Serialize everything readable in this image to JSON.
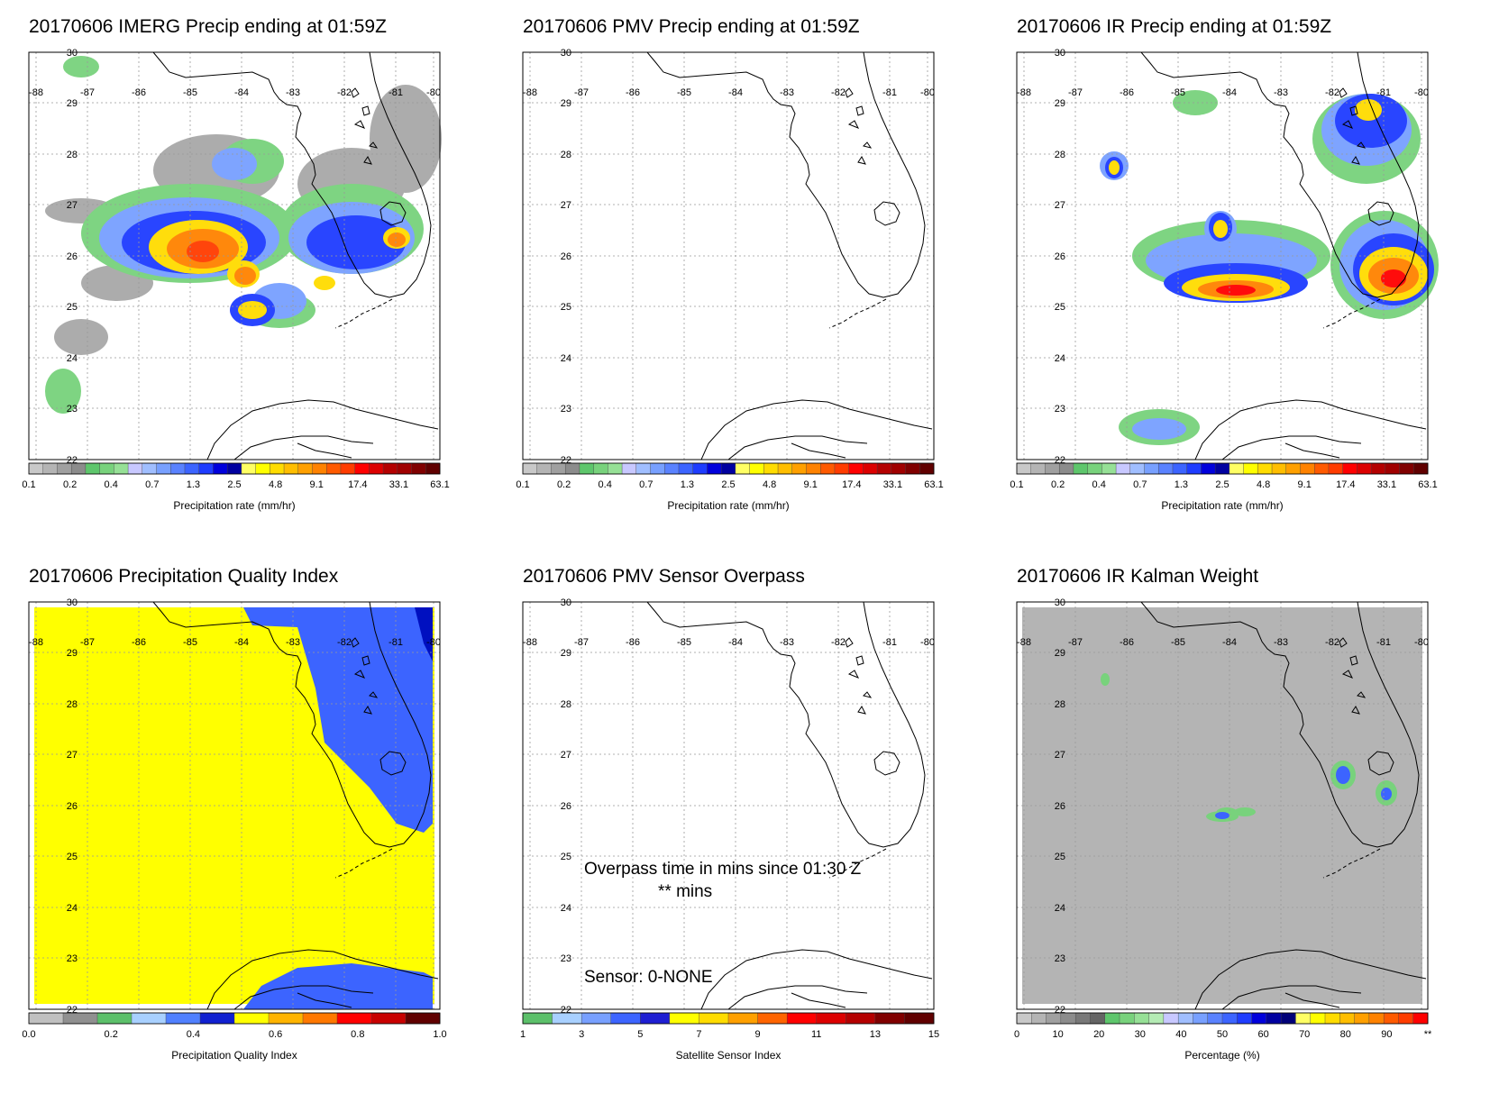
{
  "map_labels": {
    "lon": [
      "-88",
      "-87",
      "-86",
      "-85",
      "-84",
      "-83",
      "-82",
      "-81",
      "-80"
    ],
    "lat": [
      "30",
      "29",
      "28",
      "27",
      "26",
      "25",
      "24",
      "23",
      "22"
    ]
  },
  "colorbars": {
    "precip": {
      "colors": [
        "#c8c8c8",
        "#b4b4b4",
        "#a0a0a0",
        "#8c8c8c",
        "#5ec66c",
        "#78d27c",
        "#96e096",
        "#c8c8ff",
        "#a0beff",
        "#78a0ff",
        "#5a82ff",
        "#3c64ff",
        "#1e3cff",
        "#0000dc",
        "#0000a0",
        "#ffff64",
        "#ffff00",
        "#ffdc00",
        "#ffbe00",
        "#ffa000",
        "#ff8200",
        "#ff5a00",
        "#ff3c00",
        "#ff0000",
        "#dc0000",
        "#b40000",
        "#a00000",
        "#800000",
        "#600000"
      ],
      "ticks": [
        "0.1",
        "0.2",
        "0.4",
        "0.7",
        "1.3",
        "2.5",
        "4.8",
        "9.1",
        "17.4",
        "33.1",
        "63.1"
      ],
      "label": "Precipitation rate (mm/hr)"
    },
    "pqi": {
      "colors": [
        "#c0c0c0",
        "#909090",
        "#5cc06a",
        "#a8d0ff",
        "#5080ff",
        "#1020d0",
        "#ffff00",
        "#ffb400",
        "#ff7800",
        "#ff0000",
        "#c80000",
        "#600000"
      ],
      "ticks": [
        "0.0",
        "0.2",
        "0.4",
        "0.6",
        "0.8",
        "1.0"
      ],
      "label": "Precipitation Quality Index"
    },
    "sensor": {
      "colors": [
        "#5cc06a",
        "#a8d0ff",
        "#78a0ff",
        "#3c64ff",
        "#1e1ed2",
        "#ffff00",
        "#ffdc00",
        "#ffa000",
        "#ff6400",
        "#ff0000",
        "#dc0000",
        "#b40000",
        "#800000",
        "#600000"
      ],
      "ticks": [
        "1",
        "3",
        "5",
        "7",
        "9",
        "11",
        "13",
        "15"
      ],
      "label": "Satellite Sensor Index"
    },
    "percent": {
      "colors": [
        "#c8c8c8",
        "#b4b4b4",
        "#a0a0a0",
        "#8c8c8c",
        "#787878",
        "#646464",
        "#5ec66c",
        "#78d27c",
        "#96e096",
        "#b4ebb4",
        "#c8c8ff",
        "#a0beff",
        "#78a0ff",
        "#5a82ff",
        "#3c64ff",
        "#1e3cff",
        "#0000dc",
        "#0000a0",
        "#000078",
        "#ffff64",
        "#ffff00",
        "#ffdc00",
        "#ffbe00",
        "#ffa000",
        "#ff8200",
        "#ff5a00",
        "#ff3c00",
        "#ff0000"
      ],
      "ticks": [
        "0",
        "10",
        "20",
        "30",
        "40",
        "50",
        "60",
        "70",
        "80",
        "90",
        "**"
      ],
      "label": "Percentage (%)"
    }
  },
  "panels": [
    {
      "title": "20170606 IMERG Precip ending at 01:59Z",
      "field": "imerg",
      "colorbar": "precip"
    },
    {
      "title": "20170606 PMV Precip ending at 01:59Z",
      "field": "none",
      "colorbar": "precip"
    },
    {
      "title": "20170606 IR Precip ending at 01:59Z",
      "field": "ir",
      "colorbar": "precip"
    },
    {
      "title": "20170606 Precipitation Quality Index",
      "field": "pqi",
      "colorbar": "pqi"
    },
    {
      "title": "20170606 PMV Sensor Overpass",
      "field": "none",
      "colorbar": "sensor",
      "overpass_line1": "Overpass time in mins since 01:30 Z",
      "overpass_line2": "** mins",
      "sensor_text": "Sensor:   0-NONE"
    },
    {
      "title": "20170606 IR Kalman Weight",
      "field": "kalman",
      "colorbar": "percent"
    }
  ]
}
